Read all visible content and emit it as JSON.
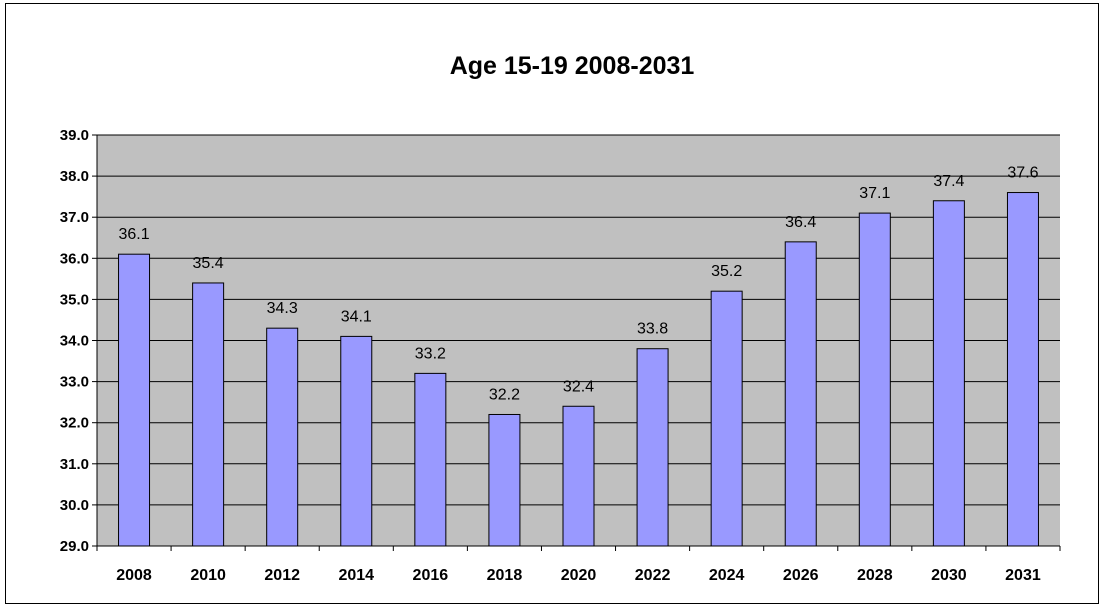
{
  "chart_data": {
    "type": "bar",
    "title": "Age 15-19 2008-2031",
    "xlabel": "",
    "ylabel": "",
    "categories": [
      "2008",
      "2010",
      "2012",
      "2014",
      "2016",
      "2018",
      "2020",
      "2022",
      "2024",
      "2026",
      "2028",
      "2030",
      "2031"
    ],
    "values": [
      36.1,
      35.4,
      34.3,
      34.1,
      33.2,
      32.2,
      32.4,
      33.8,
      35.2,
      36.4,
      37.1,
      37.4,
      37.6
    ],
    "value_labels": [
      "36.1",
      "35.4",
      "34.3",
      "34.1",
      "33.2",
      "32.2",
      "32.4",
      "33.8",
      "35.2",
      "36.4",
      "37.1",
      "37.4",
      "37.6"
    ],
    "ylim": [
      29.0,
      39.0
    ],
    "yticks": [
      "29.0",
      "30.0",
      "31.0",
      "32.0",
      "33.0",
      "34.0",
      "35.0",
      "36.0",
      "37.0",
      "38.0",
      "39.0"
    ],
    "grid": true,
    "legend": "none",
    "colors": {
      "bar_fill": "#9999ff",
      "bar_stroke": "#000000",
      "plot_background": "#c0c0c0",
      "gridline": "#000000"
    }
  }
}
